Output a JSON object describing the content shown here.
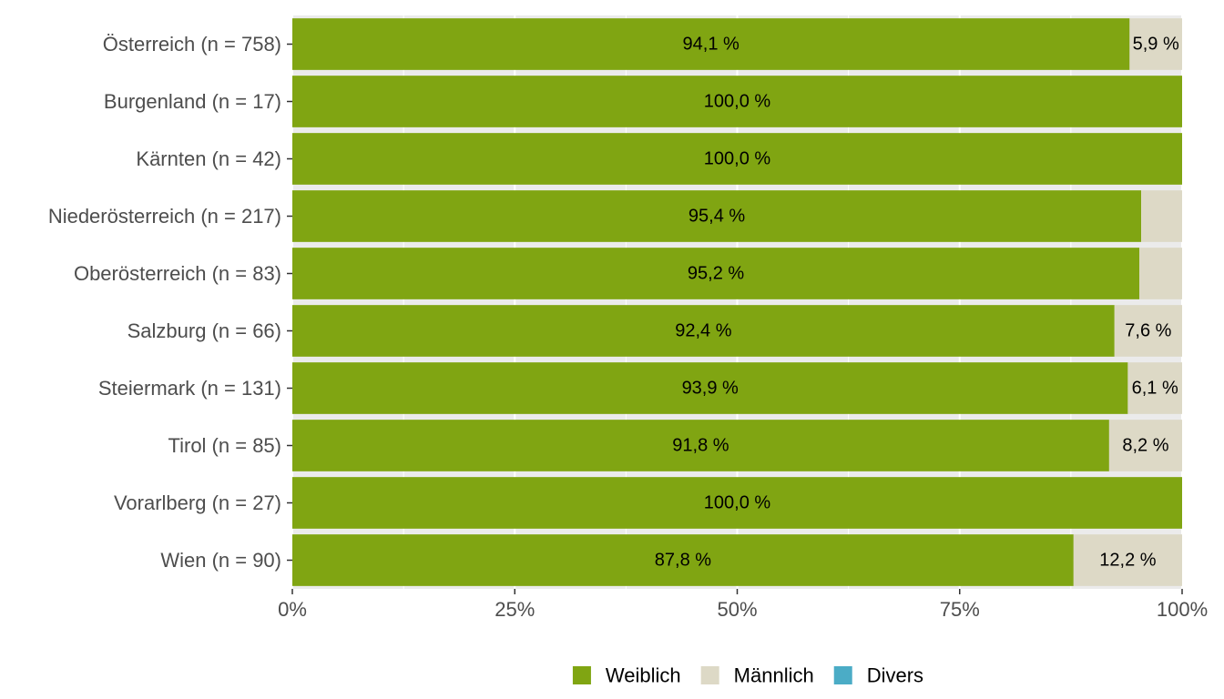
{
  "chart_data": {
    "type": "bar",
    "orientation": "horizontal",
    "stacked": true,
    "categories": [
      "Österreich (n = 758)",
      "Burgenland (n = 17)",
      "Kärnten (n = 42)",
      "Niederösterreich (n = 217)",
      "Oberösterreich (n = 83)",
      "Salzburg (n = 66)",
      "Steiermark (n = 131)",
      "Tirol (n = 85)",
      "Vorarlberg (n = 27)",
      "Wien (n = 90)"
    ],
    "series": [
      {
        "name": "Weiblich",
        "color": "#80a512",
        "values": [
          94.1,
          100.0,
          100.0,
          95.4,
          95.2,
          92.4,
          93.9,
          91.8,
          100.0,
          87.8
        ],
        "labels": [
          "94,1 %",
          "100,0 %",
          "100,0 %",
          "95,4 %",
          "95,2 %",
          "92,4 %",
          "93,9 %",
          "91,8 %",
          "100,0 %",
          "87,8 %"
        ]
      },
      {
        "name": "Männlich",
        "color": "#ddd9c6",
        "values": [
          5.9,
          0.0,
          0.0,
          4.6,
          4.8,
          7.6,
          6.1,
          8.2,
          0.0,
          12.2
        ],
        "labels": [
          "5,9 %",
          "",
          "",
          "",
          "",
          "7,6 %",
          "6,1 %",
          "8,2 %",
          "",
          "12,2 %"
        ]
      },
      {
        "name": "Divers",
        "color": "#4bacc6",
        "values": [
          0,
          0,
          0,
          0,
          0,
          0,
          0,
          0,
          0,
          0
        ],
        "labels": [
          "",
          "",
          "",
          "",
          "",
          "",
          "",
          "",
          "",
          ""
        ]
      }
    ],
    "x_ticks": [
      0,
      25,
      50,
      75,
      100
    ],
    "x_tick_labels": [
      "0%",
      "25%",
      "50%",
      "75%",
      "100%"
    ],
    "xlim": [
      0,
      100
    ],
    "grid": true,
    "legend_position": "bottom",
    "panel_background": "#ebebeb",
    "grid_color": "#ffffff"
  }
}
